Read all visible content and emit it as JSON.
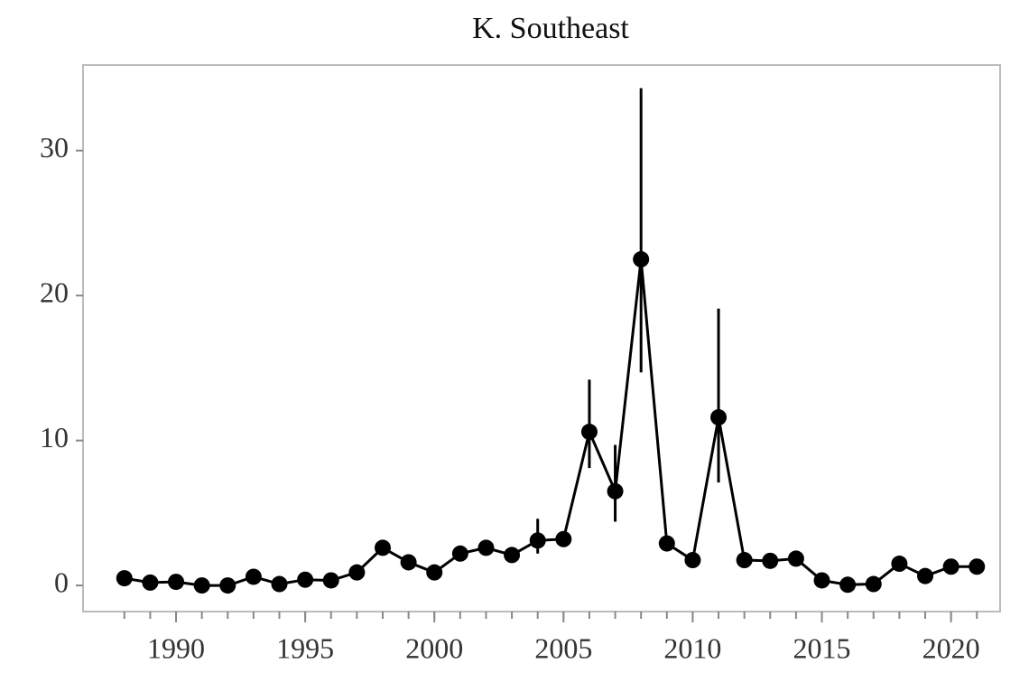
{
  "chart_data": {
    "type": "line",
    "title": "K. Southeast",
    "x": [
      1988,
      1989,
      1990,
      1991,
      1992,
      1993,
      1994,
      1995,
      1996,
      1997,
      1998,
      1999,
      2000,
      2001,
      2002,
      2003,
      2004,
      2005,
      2006,
      2007,
      2008,
      2009,
      2010,
      2011,
      2012,
      2013,
      2014,
      2015,
      2016,
      2017,
      2018,
      2019,
      2020,
      2021
    ],
    "series": [
      {
        "color": "#000000",
        "values": [
          0.5,
          0.2,
          0.25,
          0,
          0,
          0.6,
          0.1,
          0.4,
          0.35,
          0.9,
          2.6,
          1.6,
          0.9,
          2.2,
          2.6,
          2.1,
          3.1,
          3.2,
          10.6,
          6.5,
          22.5,
          2.9,
          1.75,
          11.6,
          1.75,
          1.7,
          1.85,
          0.35,
          0.05,
          0.1,
          1.5,
          0.65,
          1.3,
          1.3
        ],
        "lower": [
          null,
          null,
          null,
          null,
          null,
          null,
          null,
          null,
          null,
          null,
          null,
          null,
          null,
          null,
          null,
          null,
          2.2,
          null,
          8.1,
          4.4,
          14.7,
          null,
          null,
          7.1,
          null,
          null,
          null,
          null,
          null,
          null,
          null,
          null,
          null,
          null
        ],
        "upper": [
          null,
          null,
          null,
          null,
          null,
          null,
          null,
          null,
          null,
          null,
          null,
          null,
          null,
          null,
          null,
          null,
          4.6,
          null,
          14.2,
          9.7,
          34.3,
          null,
          null,
          19.1,
          null,
          null,
          null,
          null,
          null,
          null,
          null,
          null,
          null,
          null
        ]
      }
    ],
    "xlim": [
      1986.4,
      2021.9
    ],
    "xticks": [
      1990,
      1995,
      2000,
      2005,
      2010,
      2015,
      2020
    ],
    "ylim": [
      -1.8,
      35.9
    ],
    "yticks": [
      0,
      10,
      20,
      30
    ]
  }
}
